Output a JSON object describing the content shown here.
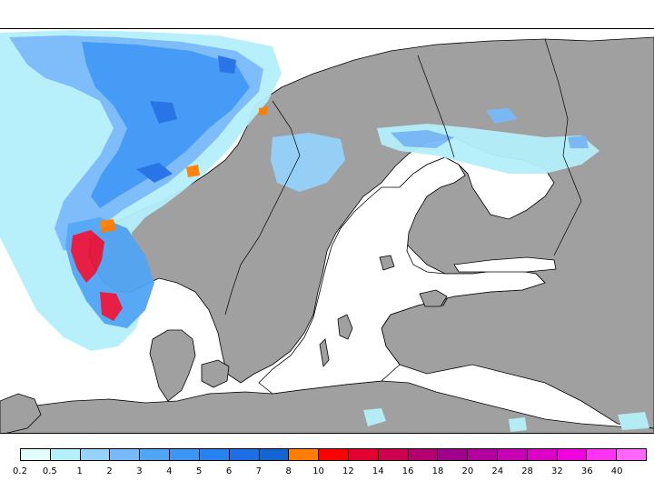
{
  "colors": {
    "land": "#a0a0a0",
    "sea": "#ffffff",
    "coastline": "#000000",
    "precip_light": "#b4f0fa",
    "precip_medium": "#50a5f5",
    "precip_heavy": "#1e5fdc",
    "precip_orange": "#ff7d00",
    "precip_red": "#e6143c"
  },
  "legend": {
    "colors": [
      "#e1ffff",
      "#b4f0fa",
      "#96d2fa",
      "#78b9fa",
      "#50a5f5",
      "#3c96f5",
      "#2882f0",
      "#1e6ee6",
      "#1464d2",
      "#ff7d00",
      "#ff0000",
      "#e60032",
      "#cd0050",
      "#b4006e",
      "#a0008c",
      "#b400a0",
      "#c800b4",
      "#dc00c8",
      "#f000dc",
      "#ff32f5",
      "#ff64ff"
    ],
    "labels": [
      "0.2",
      "0.5",
      "1",
      "2",
      "3",
      "4",
      "5",
      "6",
      "7",
      "8",
      "10",
      "12",
      "14",
      "16",
      "18",
      "20",
      "24",
      "28",
      "32",
      "36",
      "40"
    ]
  }
}
